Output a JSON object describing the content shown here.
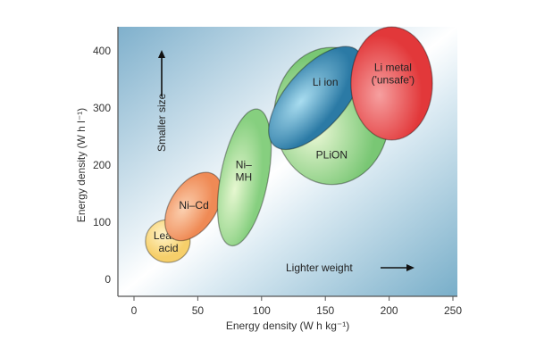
{
  "chart_data": {
    "type": "scatter",
    "title": "",
    "xlabel": "Energy density (W h kg⁻¹)",
    "ylabel": "Energy density (W h l⁻¹)",
    "xlim": [
      -12,
      253
    ],
    "ylim": [
      -30,
      442
    ],
    "xticks": [
      0,
      50,
      100,
      150,
      200,
      250
    ],
    "yticks": [
      0,
      100,
      200,
      300,
      400
    ],
    "grid": false,
    "background": {
      "edge": "#7fb0cc",
      "center": "#ffffff"
    },
    "regions": [
      {
        "name": "Lead–acid",
        "label_lines": [
          "Lead–",
          "acid"
        ],
        "axis_start": [
          9,
          67
        ],
        "axis_end": [
          44,
          67
        ],
        "aspect": 0.96,
        "color": "#f6cf6a",
        "highlight": "#fff3c8",
        "label_at": [
          27,
          66
        ]
      },
      {
        "name": "Ni–Cd",
        "label_lines": [
          "Ni–Cd"
        ],
        "axis_start": [
          30,
          72
        ],
        "axis_end": [
          63,
          183
        ],
        "aspect": 0.6,
        "color": "#ef8a55",
        "highlight": "#fbd0b0",
        "label_at": [
          47,
          130
        ]
      },
      {
        "name": "Ni–MH",
        "label_lines": [
          "Ni–",
          "MH"
        ],
        "axis_start": [
          76,
          59
        ],
        "axis_end": [
          97,
          298
        ],
        "aspect": 0.34,
        "color": "#86cf7f",
        "highlight": "#e6f7d0",
        "label_at": [
          86,
          190
        ]
      },
      {
        "name": "PLiON",
        "label_lines": [
          "PLiON"
        ],
        "axis_start": [
          155,
          166
        ],
        "axis_end": [
          155,
          406
        ],
        "aspect": 0.84,
        "color": "#79c774",
        "highlight": "#eef9d8",
        "label_at": [
          155,
          218
        ]
      },
      {
        "name": "Li ion",
        "label_lines": [
          "Li ion"
        ],
        "axis_start": [
          110,
          234
        ],
        "axis_end": [
          175,
          401
        ],
        "aspect": 0.47,
        "color": "#2b7aa5",
        "highlight": "#a9ddf0",
        "label_at": [
          150,
          345
        ]
      },
      {
        "name": "Li metal ('unsafe')",
        "label_lines": [
          "Li metal",
          "('unsafe')"
        ],
        "axis_start": [
          202,
          244
        ],
        "axis_end": [
          202,
          442
        ],
        "aspect": 0.72,
        "color": "#e2383a",
        "highlight": "#f6a0a0",
        "label_at": [
          203,
          360
        ]
      }
    ],
    "annotations": [
      {
        "text": "Smaller size",
        "direction": "up"
      },
      {
        "text": "Lighter weight",
        "direction": "right"
      }
    ]
  }
}
